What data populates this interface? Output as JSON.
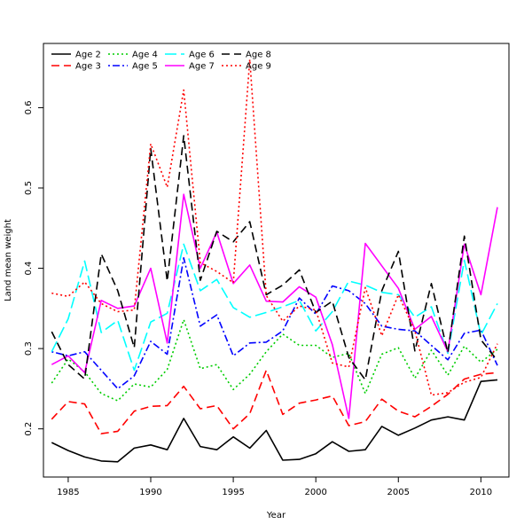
{
  "chart_data": {
    "type": "line",
    "title": "",
    "xlabel": "Year",
    "ylabel": "Land mean weight",
    "xlim": [
      1983.5,
      2011.7
    ],
    "ylim": [
      0.14,
      0.68
    ],
    "x_ticks": [
      1985,
      1990,
      1995,
      2000,
      2005,
      2010
    ],
    "y_ticks": [
      0.2,
      0.3,
      0.4,
      0.5,
      0.6
    ],
    "x_tick_labels": [
      "1985",
      "1990",
      "1995",
      "2000",
      "2005",
      "2010"
    ],
    "y_tick_labels": [
      "0.2",
      "0.3",
      "0.4",
      "0.5",
      "0.6"
    ],
    "legend_position": "top-left",
    "x": [
      1984,
      1985,
      1986,
      1987,
      1988,
      1989,
      1990,
      1991,
      1992,
      1993,
      1994,
      1995,
      1996,
      1997,
      1998,
      1999,
      2000,
      2001,
      2002,
      2003,
      2004,
      2005,
      2006,
      2007,
      2008,
      2009,
      2010,
      2011
    ],
    "series": [
      {
        "name": "Age 2",
        "color": "#000000",
        "dash": "solid",
        "width": 1.6,
        "values": [
          0.183,
          0.173,
          0.165,
          0.16,
          0.159,
          0.176,
          0.18,
          0.174,
          0.213,
          0.178,
          0.174,
          0.19,
          0.176,
          0.198,
          0.161,
          0.162,
          0.169,
          0.184,
          0.172,
          0.174,
          0.203,
          0.192,
          0.201,
          0.211,
          0.215,
          0.211,
          0.259,
          0.261
        ]
      },
      {
        "name": "Age 3",
        "color": "#ff0000",
        "dash": "dashed",
        "width": 1.6,
        "values": [
          0.212,
          0.234,
          0.231,
          0.194,
          0.197,
          0.222,
          0.228,
          0.229,
          0.253,
          0.225,
          0.229,
          0.2,
          0.219,
          0.273,
          0.218,
          0.232,
          0.236,
          0.241,
          0.204,
          0.209,
          0.237,
          0.222,
          0.215,
          0.228,
          0.243,
          0.262,
          0.268,
          0.27
        ]
      },
      {
        "name": "Age 4",
        "color": "#00cd00",
        "dash": "dotted",
        "width": 1.6,
        "values": [
          0.257,
          0.287,
          0.271,
          0.244,
          0.235,
          0.256,
          0.252,
          0.274,
          0.336,
          0.275,
          0.28,
          0.249,
          0.268,
          0.296,
          0.318,
          0.304,
          0.304,
          0.289,
          0.294,
          0.244,
          0.293,
          0.301,
          0.263,
          0.298,
          0.267,
          0.303,
          0.283,
          0.299
        ]
      },
      {
        "name": "Age 5",
        "color": "#0000ff",
        "dash": "dotdash",
        "width": 1.6,
        "values": [
          0.296,
          0.291,
          0.296,
          0.273,
          0.25,
          0.266,
          0.309,
          0.293,
          0.413,
          0.328,
          0.342,
          0.291,
          0.307,
          0.308,
          0.322,
          0.363,
          0.343,
          0.378,
          0.372,
          0.356,
          0.328,
          0.324,
          0.322,
          0.304,
          0.286,
          0.319,
          0.323,
          0.279
        ]
      },
      {
        "name": "Age 6",
        "color": "#00ffff",
        "dash": "longdash",
        "width": 1.6,
        "values": [
          0.296,
          0.337,
          0.409,
          0.32,
          0.335,
          0.273,
          0.333,
          0.344,
          0.43,
          0.372,
          0.386,
          0.351,
          0.339,
          0.345,
          0.352,
          0.36,
          0.322,
          0.346,
          0.384,
          0.379,
          0.37,
          0.367,
          0.339,
          0.352,
          0.294,
          0.41,
          0.317,
          0.356
        ]
      },
      {
        "name": "Age 7",
        "color": "#ff00ff",
        "dash": "solid",
        "width": 1.6,
        "values": [
          0.28,
          0.291,
          0.27,
          0.36,
          0.35,
          0.353,
          0.4,
          0.307,
          0.492,
          0.4,
          0.445,
          0.381,
          0.404,
          0.359,
          0.358,
          0.377,
          0.364,
          0.305,
          0.213,
          0.431,
          0.403,
          0.375,
          0.324,
          0.34,
          0.296,
          0.43,
          0.367,
          0.476
        ]
      },
      {
        "name": "Age 8",
        "color": "#000000",
        "dash": "dashed",
        "width": 1.6,
        "values": [
          0.321,
          0.28,
          0.262,
          0.418,
          0.372,
          0.301,
          0.549,
          0.384,
          0.565,
          0.385,
          0.446,
          0.433,
          0.458,
          0.367,
          0.379,
          0.398,
          0.345,
          0.359,
          0.289,
          0.261,
          0.372,
          0.421,
          0.297,
          0.381,
          0.295,
          0.44,
          0.311,
          0.285
        ]
      },
      {
        "name": "Age 9",
        "color": "#ff0000",
        "dash": "dotted",
        "width": 1.6,
        "values": [
          0.369,
          0.365,
          0.383,
          0.356,
          0.346,
          0.348,
          0.555,
          0.501,
          0.622,
          0.407,
          0.396,
          0.382,
          0.66,
          0.366,
          0.334,
          0.353,
          0.348,
          0.282,
          0.277,
          0.376,
          0.316,
          0.367,
          0.322,
          0.242,
          0.245,
          0.258,
          0.264,
          0.306
        ]
      }
    ]
  }
}
